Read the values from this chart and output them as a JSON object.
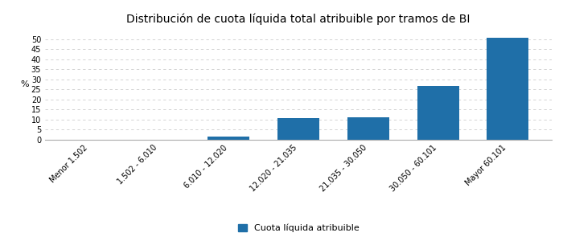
{
  "title": "Distribución de cuota líquida total atribuible por tramos de BI",
  "categories": [
    "Menor 1.502",
    "1.502 - 6.010",
    "6.010 - 12.020",
    "12.020 - 21.035",
    "21.035 - 30.050",
    "30.050 - 60.101",
    "Mayor 60.101"
  ],
  "values": [
    0.0,
    0.0,
    1.7,
    10.6,
    11.2,
    26.7,
    50.7
  ],
  "bar_color": "#1f6fa8",
  "ylabel": "%",
  "ylim": [
    0,
    55
  ],
  "yticks": [
    0,
    5,
    10,
    15,
    20,
    25,
    30,
    35,
    40,
    45,
    50
  ],
  "legend_label": "Cuota líquida atribuible",
  "background_color": "#ffffff",
  "grid_color": "#cccccc",
  "title_fontsize": 10,
  "tick_fontsize": 7,
  "ylabel_fontsize": 8,
  "legend_fontsize": 8
}
